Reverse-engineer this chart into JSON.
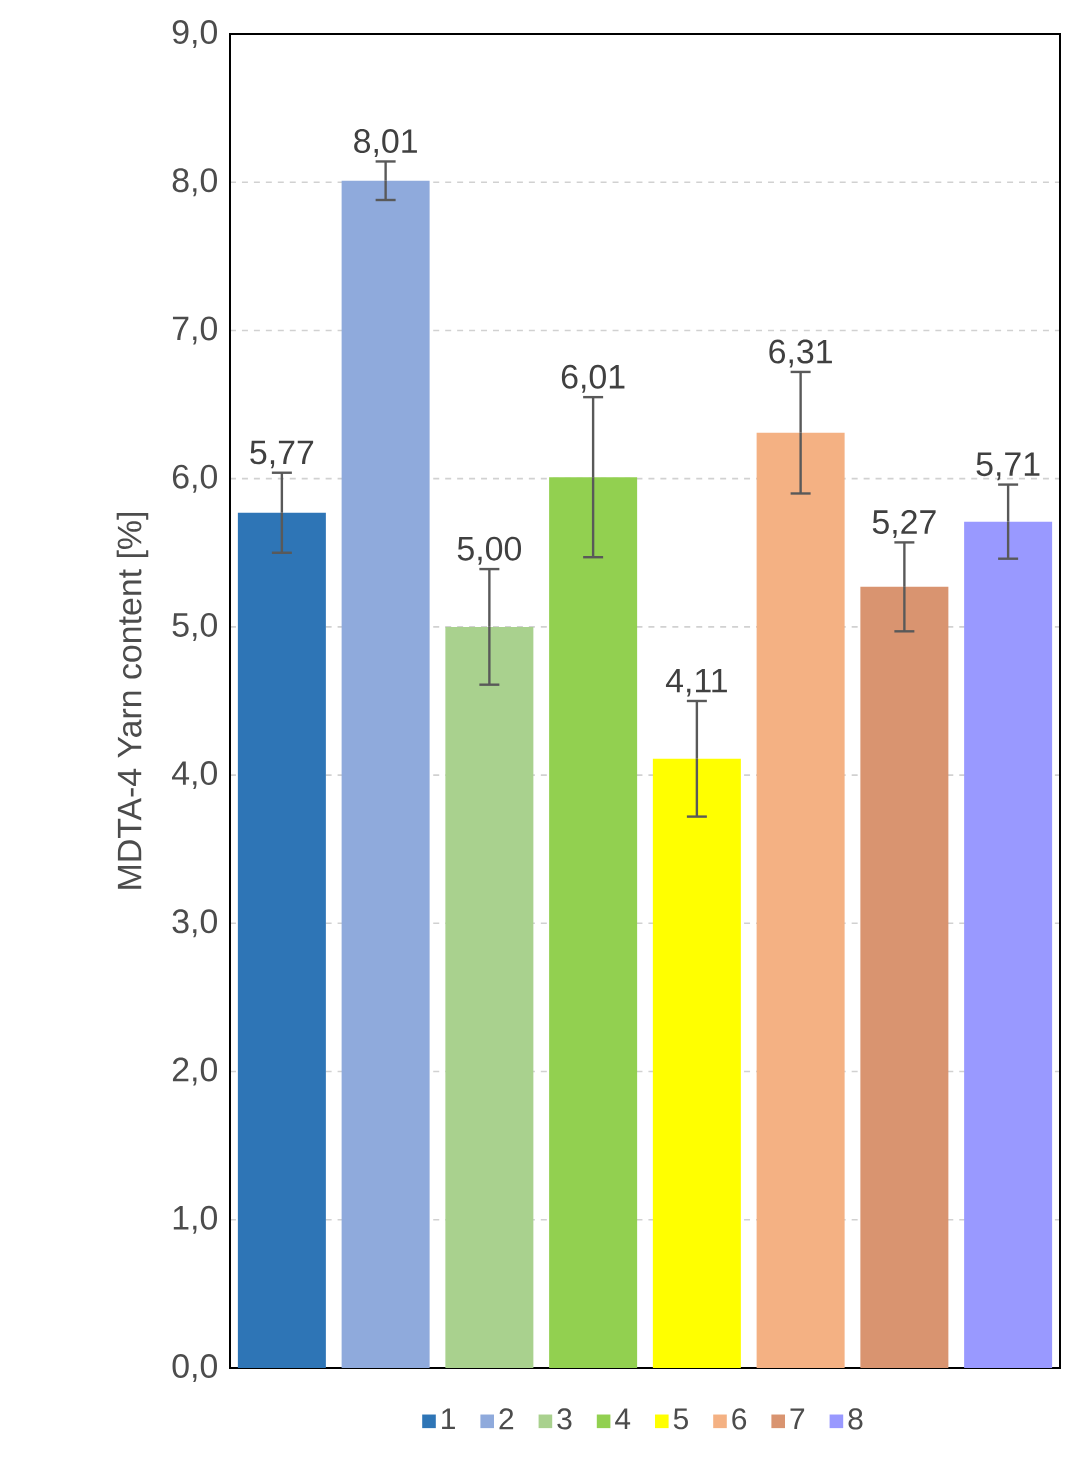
{
  "chart_data": {
    "type": "bar",
    "ylabel": "MDTA-4 Yarn content [%]",
    "categories": [
      null,
      null,
      null,
      null,
      null,
      null,
      null,
      null
    ],
    "ylim": [
      0,
      9
    ],
    "yticks": [
      {
        "value": 0,
        "label": "0,0"
      },
      {
        "value": 1,
        "label": "1,0"
      },
      {
        "value": 2,
        "label": "2,0"
      },
      {
        "value": 3,
        "label": "3,0"
      },
      {
        "value": 4,
        "label": "4,0"
      },
      {
        "value": 5,
        "label": "5,0"
      },
      {
        "value": 6,
        "label": "6,0"
      },
      {
        "value": 7,
        "label": "7,0"
      },
      {
        "value": 8,
        "label": "8,0"
      },
      {
        "value": 9,
        "label": "9,0"
      }
    ],
    "grid": "y",
    "legend": "bottom",
    "series": [
      {
        "name": "1",
        "color": "#2e75b6",
        "values": [
          5.77,
          null,
          null,
          null,
          null,
          null,
          null,
          null
        ],
        "errors": [
          0.27,
          null,
          null,
          null,
          null,
          null,
          null,
          null
        ],
        "value_labels": [
          "5,77",
          null,
          null,
          null,
          null,
          null,
          null,
          null
        ]
      },
      {
        "name": "2",
        "color": "#8faadc",
        "values": [
          null,
          8.01,
          null,
          null,
          null,
          null,
          null,
          null
        ],
        "errors": [
          null,
          0.13,
          null,
          null,
          null,
          null,
          null,
          null
        ],
        "value_labels": [
          null,
          "8,01",
          null,
          null,
          null,
          null,
          null,
          null
        ]
      },
      {
        "name": "3",
        "color": "#a9d18e",
        "values": [
          null,
          null,
          5.0,
          null,
          null,
          null,
          null,
          null
        ],
        "errors": [
          null,
          null,
          0.39,
          null,
          null,
          null,
          null,
          null
        ],
        "value_labels": [
          null,
          null,
          "5,00",
          null,
          null,
          null,
          null,
          null
        ]
      },
      {
        "name": "4",
        "color": "#92d050",
        "values": [
          null,
          null,
          null,
          6.01,
          null,
          null,
          null,
          null
        ],
        "errors": [
          null,
          null,
          null,
          0.54,
          null,
          null,
          null,
          null
        ],
        "value_labels": [
          null,
          null,
          null,
          "6,01",
          null,
          null,
          null,
          null
        ]
      },
      {
        "name": "5",
        "color": "#ffff00",
        "values": [
          null,
          null,
          null,
          null,
          4.11,
          null,
          null,
          null
        ],
        "errors": [
          null,
          null,
          null,
          null,
          0.39,
          null,
          null,
          null
        ],
        "value_labels": [
          null,
          null,
          null,
          null,
          "4,11",
          null,
          null,
          null
        ]
      },
      {
        "name": "6",
        "color": "#f4b183",
        "values": [
          null,
          null,
          null,
          null,
          null,
          6.31,
          null,
          null
        ],
        "errors": [
          null,
          null,
          null,
          null,
          null,
          0.41,
          null,
          null
        ],
        "value_labels": [
          null,
          null,
          null,
          null,
          null,
          "6,31",
          null,
          null
        ]
      },
      {
        "name": "7",
        "color": "#d99470",
        "values": [
          null,
          null,
          null,
          null,
          null,
          null,
          5.27,
          null
        ],
        "errors": [
          null,
          null,
          null,
          null,
          null,
          null,
          0.3,
          null
        ],
        "value_labels": [
          null,
          null,
          null,
          null,
          null,
          null,
          "5,27",
          null
        ]
      },
      {
        "name": "8",
        "color": "#9999ff",
        "values": [
          null,
          null,
          null,
          null,
          null,
          null,
          null,
          5.71
        ],
        "errors": [
          null,
          null,
          null,
          null,
          null,
          null,
          null,
          0.25
        ],
        "value_labels": [
          null,
          null,
          null,
          null,
          null,
          null,
          null,
          "5,71"
        ]
      }
    ]
  }
}
